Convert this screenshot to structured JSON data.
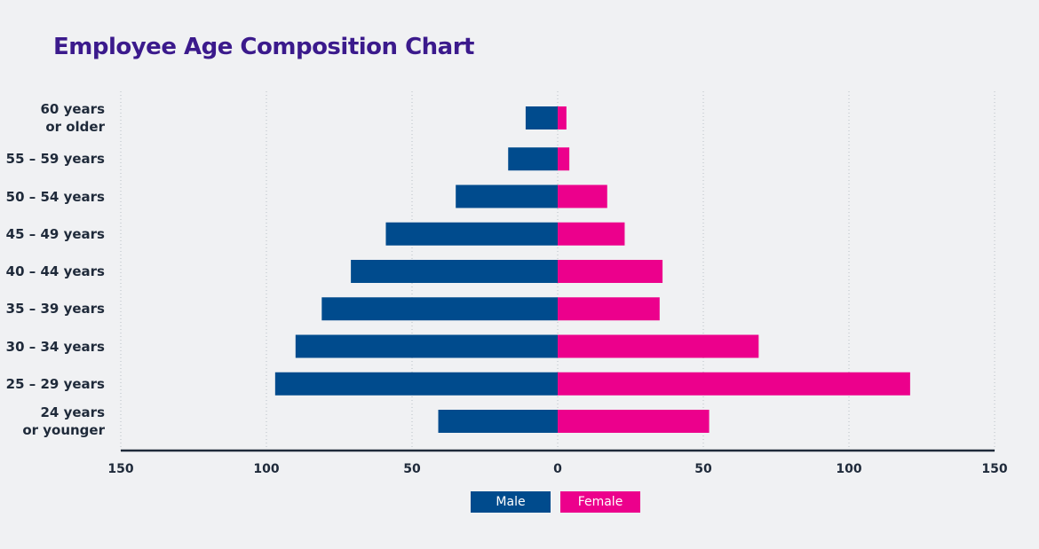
{
  "chart_data": {
    "type": "pyramid",
    "title": "Employee Age Composition Chart",
    "categories": [
      "60 years\nor older",
      "55 – 59 years",
      "50 – 54 years",
      "45 – 49 years",
      "40 – 44 years",
      "35 – 39 years",
      "30 – 34 years",
      "25 – 29 years",
      "24 years\nor younger"
    ],
    "series": [
      {
        "name": "Male",
        "color": "#004b8d",
        "values": [
          -11,
          -17,
          -35,
          -59,
          -71,
          -81,
          -90,
          -97,
          -41
        ]
      },
      {
        "name": "Female",
        "color": "#ec008c",
        "values": [
          3,
          4,
          17,
          23,
          36,
          35,
          69,
          121,
          52
        ]
      }
    ],
    "xlim": [
      -150,
      150
    ],
    "xticks": [
      {
        "value": -150,
        "label": "150"
      },
      {
        "value": -100,
        "label": "100"
      },
      {
        "value": -50,
        "label": "50"
      },
      0,
      50,
      100,
      150
    ],
    "grid": true
  }
}
